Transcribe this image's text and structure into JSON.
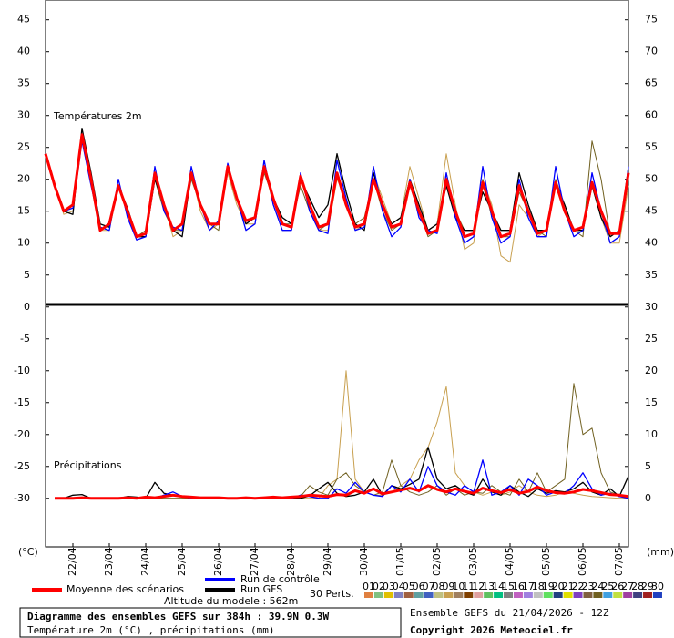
{
  "chart_data": {
    "type": "line",
    "title": "Diagramme des ensembles GEFS sur 384h : 39.9N 0.3W",
    "subtitle": "Température 2m (°C) , précipitations (mm)",
    "run_label": "Ensemble GEFS du 21/04/2026 - 12Z",
    "copyright": "Copyright 2026 Meteociel.fr",
    "altitude": "Altitude du modele : 562m",
    "temperature_label": "Températures 2m",
    "precipitation_label": "Précipitations",
    "y_unit": "(°C)",
    "y2_unit": "(mm)",
    "ylim": [
      -37.6,
      48.1
    ],
    "yticks": [
      45,
      40,
      35,
      30,
      25,
      20,
      15,
      10,
      5,
      0,
      -5,
      -10,
      -15,
      -20,
      -25,
      -30
    ],
    "y2lim": [
      -7.6,
      78.1
    ],
    "y2ticks": [
      75,
      70,
      65,
      60,
      55,
      50,
      45,
      40,
      35,
      30,
      25,
      20,
      15,
      10,
      5,
      0
    ],
    "categories": [
      null,
      null,
      null,
      "22/04",
      null,
      null,
      null,
      "23/04",
      null,
      null,
      null,
      "24/04",
      null,
      null,
      null,
      "25/04",
      null,
      null,
      null,
      "26/04",
      null,
      null,
      null,
      "27/04",
      null,
      null,
      null,
      "28/04",
      null,
      null,
      null,
      "29/04",
      null,
      null,
      null,
      "30/04",
      null,
      null,
      null,
      "01/05",
      null,
      null,
      null,
      "02/05",
      null,
      null,
      null,
      "03/05",
      null,
      null,
      null,
      "04/05",
      null,
      null,
      null,
      "05/05",
      null,
      null,
      null,
      "06/05",
      null,
      null,
      null,
      "07/05",
      null
    ],
    "series": [
      {
        "name": "Moyenne des scénarios",
        "color": "#ff0000",
        "values": [
          24,
          19,
          15,
          16,
          27,
          20,
          12,
          13,
          19,
          15,
          11,
          11.5,
          21,
          16,
          12,
          13,
          21,
          16,
          13,
          13,
          22,
          17,
          13.5,
          14,
          22,
          17,
          13,
          12.5,
          20.5,
          16,
          12.5,
          13,
          21,
          16,
          12.5,
          13,
          20,
          16,
          12.5,
          13,
          19.5,
          15,
          11.5,
          12,
          20,
          15,
          11,
          11.5,
          19.5,
          15,
          11,
          11.5,
          19,
          15,
          11.5,
          12,
          19.5,
          15,
          12,
          12.5,
          19.5,
          15,
          11.5,
          11.5,
          21
        ],
        "precipitation": [
          null,
          0,
          0,
          0,
          0.1,
          0,
          0,
          0,
          0,
          0.1,
          0,
          0.2,
          0.1,
          0.3,
          0.5,
          0.3,
          0.2,
          0.1,
          0.1,
          0.1,
          0,
          0,
          0.1,
          0,
          0.1,
          0.2,
          0.1,
          0.2,
          0.3,
          0.5,
          0.4,
          0.3,
          0.6,
          0.5,
          1.2,
          0.8,
          1.5,
          0.7,
          1.0,
          1.3,
          1.6,
          1.2,
          2.0,
          1.4,
          1.0,
          1.5,
          1.1,
          0.8,
          1.6,
          1.2,
          0.9,
          1.4,
          0.8,
          1.1,
          1.8,
          1.2,
          0.9,
          0.8,
          1.0,
          1.4,
          1.2,
          0.9,
          0.6,
          0.5,
          0.3
        ]
      },
      {
        "name": "Run de contrôle",
        "color": "#0000ff",
        "values": [
          24,
          19,
          15,
          15.5,
          26,
          19,
          12.5,
          12,
          20,
          14,
          10.5,
          11,
          22,
          15,
          12.5,
          12,
          22,
          16,
          12,
          13.5,
          22.5,
          17,
          12,
          13,
          23,
          16,
          12,
          12,
          21,
          15,
          12,
          11.5,
          23,
          17,
          12,
          12.5,
          22,
          15,
          11,
          12.5,
          20,
          14,
          12,
          11.5,
          21,
          14,
          10,
          11,
          22,
          14,
          10,
          11,
          20,
          14,
          11,
          11,
          22,
          15,
          11,
          12,
          21,
          15,
          10,
          11,
          22
        ],
        "precipitation": [
          null,
          0,
          0,
          0,
          0,
          0,
          0,
          0,
          0,
          0,
          0,
          0,
          0,
          0.5,
          1,
          0.3,
          0,
          0,
          0,
          0,
          0,
          0,
          0,
          0,
          0,
          0,
          0,
          0,
          0.5,
          0.3,
          0,
          0,
          1.5,
          0.8,
          2.5,
          1,
          0.5,
          0.3,
          2,
          1,
          3,
          1,
          5,
          2,
          1,
          0.5,
          2,
          1,
          6,
          0.5,
          1,
          2,
          0.5,
          3,
          2,
          0.5,
          1,
          0.8,
          2,
          4,
          1.5,
          0.5,
          0.8,
          0.3,
          0
        ]
      },
      {
        "name": "Run GFS",
        "color": "#000000",
        "values": [
          24,
          19,
          15,
          14.5,
          28,
          21,
          13,
          12.5,
          19,
          15.5,
          11,
          11,
          20,
          16,
          12,
          11,
          21,
          16,
          13,
          13,
          22,
          17,
          13,
          14,
          22,
          17,
          14,
          13,
          20,
          17,
          14,
          16,
          24,
          18,
          13,
          12,
          21,
          16,
          13,
          14,
          20,
          16,
          12,
          13,
          19,
          14,
          12,
          12,
          18,
          15,
          12,
          12,
          21,
          16,
          12,
          12,
          19,
          16,
          12,
          12,
          19,
          14,
          11,
          12,
          20
        ],
        "precipitation": [
          null,
          0,
          0,
          0.5,
          0.6,
          0,
          0,
          0,
          0,
          0.3,
          0.2,
          0,
          2.5,
          0.8,
          0.5,
          0.3,
          0,
          0,
          0,
          0,
          0,
          0,
          0,
          0,
          0,
          0,
          0,
          0,
          0,
          0.4,
          1.5,
          2.5,
          0.8,
          0.3,
          0.5,
          1,
          3,
          0.5,
          2,
          1.5,
          2.2,
          3,
          8,
          3,
          1.5,
          2,
          1,
          0.5,
          3,
          1,
          0.5,
          2,
          1,
          0.3,
          1.5,
          0.8,
          1.2,
          1,
          1.5,
          2.5,
          1,
          0.5,
          1.5,
          0.3,
          3.5
        ]
      }
    ],
    "perturbations_label": "30 Perts.",
    "perturbations": [
      {
        "name": "01",
        "color": "#e08040"
      },
      {
        "name": "02",
        "color": "#80c080"
      },
      {
        "name": "03",
        "color": "#e0c000"
      },
      {
        "name": "04",
        "color": "#8080c0"
      },
      {
        "name": "05",
        "color": "#a06040"
      },
      {
        "name": "06",
        "color": "#60a0a0"
      },
      {
        "name": "07",
        "color": "#4060c0"
      },
      {
        "name": "08",
        "color": "#c0c080"
      },
      {
        "name": "09",
        "color": "#c8a050",
        "values": [
          24,
          19,
          14.5,
          15,
          27,
          20,
          12,
          12,
          19,
          15,
          11,
          11,
          20,
          16,
          11,
          12,
          21,
          15,
          12,
          13,
          21,
          16,
          13,
          13,
          22,
          16,
          12,
          12,
          20,
          16,
          12,
          12,
          20,
          17,
          12,
          13,
          21,
          17,
          13,
          14,
          22,
          17,
          12,
          13,
          24,
          16,
          9,
          10,
          20,
          16,
          8,
          7,
          16,
          14,
          11,
          12,
          19,
          15,
          12,
          12,
          19,
          14,
          10,
          10,
          19
        ],
        "precipitation": [
          null,
          0,
          0,
          0,
          0.1,
          0,
          0,
          0,
          0,
          0,
          0,
          0,
          0,
          0,
          0,
          0,
          0,
          0,
          0,
          0,
          0,
          0,
          0,
          0,
          0,
          0,
          0,
          0,
          0,
          0,
          0,
          2,
          3,
          20,
          3,
          1,
          0.5,
          0.5,
          1,
          2,
          3,
          6,
          8,
          12,
          17.5,
          4,
          2,
          1,
          0.5,
          1,
          0.5,
          1,
          2,
          1,
          0.5,
          0.3,
          0.5,
          1,
          0.8,
          0.5,
          0.3,
          0.2,
          0.1,
          0,
          0
        ]
      },
      {
        "name": "10",
        "color": "#a08060"
      },
      {
        "name": "11",
        "color": "#804000"
      },
      {
        "name": "12",
        "color": "#e0a0a0"
      },
      {
        "name": "13",
        "color": "#60c060"
      },
      {
        "name": "14",
        "color": "#00c080"
      },
      {
        "name": "15",
        "color": "#808080"
      },
      {
        "name": "16",
        "color": "#c060c0"
      },
      {
        "name": "17",
        "color": "#a080e0"
      },
      {
        "name": "18",
        "color": "#c0c0c0"
      },
      {
        "name": "19",
        "color": "#60e060"
      },
      {
        "name": "20",
        "color": "#204080"
      },
      {
        "name": "21",
        "color": "#e0e000"
      },
      {
        "name": "22",
        "color": "#8040c0"
      },
      {
        "name": "23",
        "color": "#806040"
      },
      {
        "name": "24",
        "color": "#706020",
        "values": [
          24,
          19,
          15,
          16,
          27,
          20,
          12,
          13,
          19,
          15,
          11,
          12,
          20,
          15,
          12,
          12,
          20,
          16,
          13,
          12,
          22,
          17,
          13,
          14,
          21,
          17,
          13,
          13,
          19,
          15,
          12,
          13,
          21,
          16,
          13,
          14,
          20,
          15,
          12,
          13,
          19,
          15,
          11,
          12,
          21,
          15,
          12,
          12,
          20,
          14,
          11,
          11,
          18,
          15,
          12,
          11,
          20,
          16,
          12,
          11,
          26,
          20,
          11,
          12,
          22
        ],
        "precipitation": [
          null,
          0,
          0,
          0,
          0,
          0,
          0,
          0,
          0,
          0,
          0,
          0,
          0,
          0,
          0,
          0,
          0,
          0,
          0,
          0,
          0,
          0,
          0,
          0,
          0,
          0,
          0,
          0,
          0.3,
          2,
          1,
          0.5,
          3,
          4,
          2,
          1,
          0.5,
          1,
          6,
          2,
          1,
          0.5,
          1,
          2,
          0.5,
          1.5,
          0.5,
          1,
          0.8,
          2,
          1,
          0.5,
          3,
          1,
          4,
          1,
          2,
          3,
          18,
          10,
          11,
          4,
          1,
          0.5,
          0.3
        ]
      },
      {
        "name": "25",
        "color": "#40a0e0"
      },
      {
        "name": "26",
        "color": "#c0e040"
      },
      {
        "name": "27",
        "color": "#a040a0"
      },
      {
        "name": "28",
        "color": "#404080"
      },
      {
        "name": "29",
        "color": "#a02020"
      },
      {
        "name": "30",
        "color": "#2040c0"
      }
    ]
  }
}
